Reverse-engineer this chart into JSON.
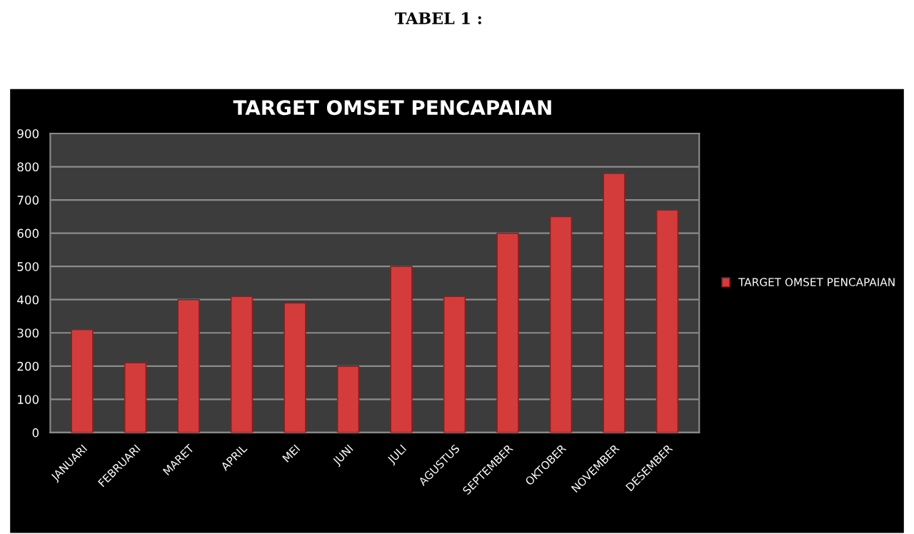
{
  "chart_data": {
    "type": "bar",
    "title": "TARGET OMSET PENCAPAIAN",
    "annotations": [
      "TABEL 1 :"
    ],
    "categories": [
      "JANUARI",
      "FEBRUARI",
      "MARET",
      "APRIL",
      "MEI",
      "JUNI",
      "JULI",
      "AGUSTUS",
      "SEPTEMBER",
      "OKTOBER",
      "NOVEMBER",
      "DESEMBER"
    ],
    "series": [
      {
        "name": "TARGET OMSET PENCAPAIAN",
        "color": "#d43c3c",
        "values": [
          310,
          210,
          400,
          410,
          390,
          200,
          500,
          410,
          600,
          650,
          780,
          670
        ]
      }
    ],
    "ylim": [
      0,
      900
    ],
    "yticks": [
      0,
      100,
      200,
      300,
      400,
      500,
      600,
      700,
      800,
      900
    ],
    "grid": "y",
    "legend": "right"
  }
}
